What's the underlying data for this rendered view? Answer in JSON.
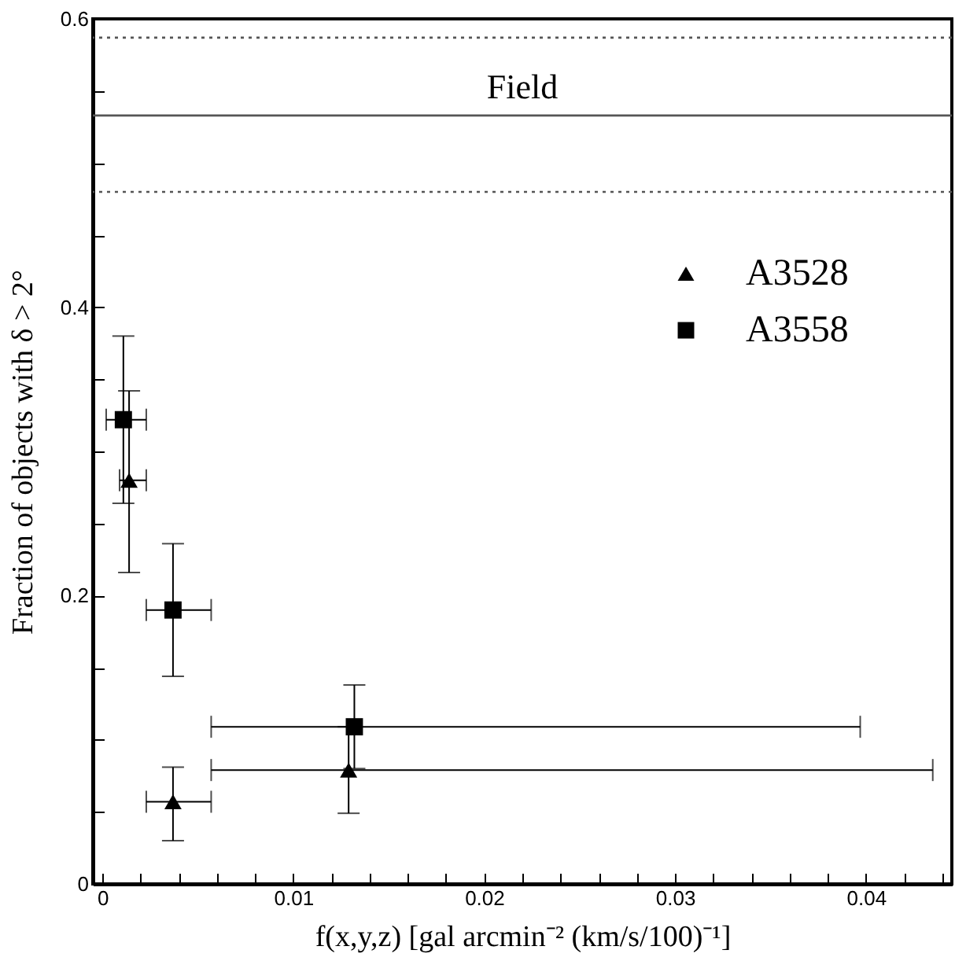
{
  "chart_data": {
    "type": "scatter",
    "xlabel": "f(x,y,z) [gal arcmin⁻² (km/s/100)⁻¹]",
    "ylabel": "Fraction of objects with δ > 2°",
    "xlim": [
      -0.0005,
      0.0445
    ],
    "ylim": [
      0,
      0.6
    ],
    "xticks": [
      0,
      {
        "value": 0.002,
        "label": null
      },
      {
        "value": 0.004,
        "label": null
      },
      {
        "value": 0.006,
        "label": null
      },
      {
        "value": 0.008,
        "label": null
      },
      0.01,
      {
        "value": 0.012,
        "label": null
      },
      {
        "value": 0.014,
        "label": null
      },
      {
        "value": 0.016,
        "label": null
      },
      {
        "value": 0.018,
        "label": null
      },
      0.02,
      {
        "value": 0.022,
        "label": null
      },
      {
        "value": 0.024,
        "label": null
      },
      {
        "value": 0.026,
        "label": null
      },
      {
        "value": 0.028,
        "label": null
      },
      0.03,
      {
        "value": 0.032,
        "label": null
      },
      {
        "value": 0.034,
        "label": null
      },
      {
        "value": 0.036,
        "label": null
      },
      {
        "value": 0.038,
        "label": null
      },
      0.04,
      {
        "value": 0.042,
        "label": null
      },
      {
        "value": 0.044,
        "label": null
      }
    ],
    "yticks": [
      0,
      {
        "value": 0.05,
        "label": null
      },
      {
        "value": 0.1,
        "label": null
      },
      {
        "value": 0.15,
        "label": null
      },
      0.2,
      {
        "value": 0.25,
        "label": null
      },
      {
        "value": 0.3,
        "label": null
      },
      {
        "value": 0.35,
        "label": null
      },
      0.4,
      {
        "value": 0.45,
        "label": null
      },
      {
        "value": 0.5,
        "label": null
      },
      {
        "value": 0.55,
        "label": null
      },
      0.6
    ],
    "grid": false,
    "legend": "top right",
    "ref_lines": [
      {
        "axis": "y",
        "value": 0.533,
        "label": "Field",
        "line_style": "solid",
        "color": "#555555"
      },
      {
        "axis": "y",
        "value": 0.587,
        "line_style": "dotted",
        "color": "#555555"
      },
      {
        "axis": "y",
        "value": 0.48,
        "line_style": "dotted",
        "color": "#555555"
      }
    ],
    "series": [
      {
        "name": "A3528",
        "color": "#000000",
        "marker": "triangle",
        "x": [
          0.0014,
          0.0037,
          0.0129
        ],
        "values": [
          0.28,
          0.057,
          0.079
        ],
        "errors": [
          [
            0.216,
            0.342
          ],
          [
            0.03,
            0.081
          ],
          [
            0.049,
            0.109
          ]
        ],
        "xerrors": [
          [
            0.0009,
            0.0023
          ],
          [
            0.0023,
            0.0057
          ],
          [
            0.0057,
            0.0435
          ]
        ]
      },
      {
        "name": "A3558",
        "color": "#000000",
        "marker": "square",
        "x": [
          0.0011,
          0.0037,
          0.0132
        ],
        "values": [
          0.322,
          0.19,
          0.109
        ],
        "errors": [
          [
            0.264,
            0.38
          ],
          [
            0.144,
            0.236
          ],
          [
            0.08,
            0.138
          ]
        ],
        "xerrors": [
          [
            0.0002,
            0.0023
          ],
          [
            0.0023,
            0.0057
          ],
          [
            0.0057,
            0.0397
          ]
        ]
      }
    ]
  }
}
